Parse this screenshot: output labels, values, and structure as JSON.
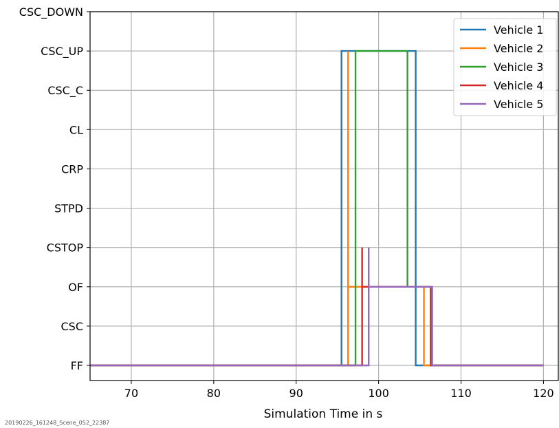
{
  "footnote": "20190226_161248_Scene_052_22387",
  "chart_data": {
    "type": "line",
    "step": true,
    "xlabel": "Simulation Time in s",
    "xlim": [
      65,
      121.8
    ],
    "x_ticks": [
      70,
      80,
      90,
      100,
      110,
      120
    ],
    "y_categories": [
      "FF",
      "CSC",
      "OF",
      "CSTOP",
      "STPD",
      "CRP",
      "CL",
      "CSC_C",
      "CSC_UP",
      "CSC_DOWN"
    ],
    "grid": true,
    "legend_position": "top-right",
    "series": [
      {
        "name": "Vehicle 1",
        "color": "#1f77b4",
        "x": [
          65,
          95.5,
          95.5,
          104.5,
          104.5,
          120
        ],
        "y": [
          "FF",
          "FF",
          "CSC_UP",
          "CSC_UP",
          "FF",
          "FF"
        ]
      },
      {
        "name": "Vehicle 2",
        "color": "#ff7f0e",
        "x": [
          65,
          96.3,
          96.3,
          96.3,
          96.3,
          105.5,
          105.5,
          120
        ],
        "y": [
          "FF",
          "FF",
          "CSC_UP",
          "CSC_UP",
          "OF",
          "OF",
          "FF",
          "FF"
        ]
      },
      {
        "name": "Vehicle 3",
        "color": "#2ca02c",
        "x": [
          65,
          97.2,
          97.2,
          97.2,
          97.2,
          103.5,
          103.5,
          103.5,
          103.5,
          106.3,
          106.3,
          120
        ],
        "y": [
          "FF",
          "FF",
          "OF",
          "OF",
          "CSC_UP",
          "CSC_UP",
          "OF",
          "OF",
          "OF",
          "OF",
          "FF",
          "FF"
        ]
      },
      {
        "name": "Vehicle 4",
        "color": "#d62728",
        "x": [
          65,
          98.0,
          98.0,
          98.0,
          98.0,
          106.4,
          106.4,
          120
        ],
        "y": [
          "FF",
          "FF",
          "CSTOP",
          "CSTOP",
          "OF",
          "OF",
          "FF",
          "FF"
        ]
      },
      {
        "name": "Vehicle 5",
        "color": "#9467bd",
        "x": [
          65,
          98.8,
          98.8,
          98.8,
          98.8,
          106.5,
          106.5,
          120
        ],
        "y": [
          "FF",
          "FF",
          "CSTOP",
          "CSTOP",
          "OF",
          "OF",
          "FF",
          "FF"
        ]
      }
    ]
  }
}
